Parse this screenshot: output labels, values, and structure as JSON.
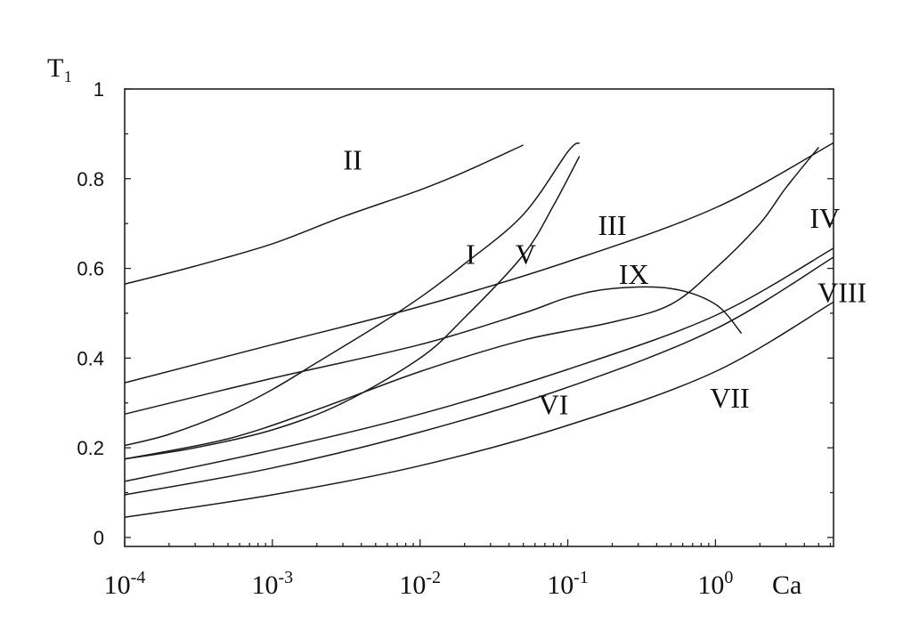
{
  "chart_data": {
    "type": "line",
    "xscale": "log",
    "xlim": [
      0.0001,
      6.3
    ],
    "ylim": [
      -0.02,
      1.0
    ],
    "xlabel": "Ca",
    "ylabel": "T₁",
    "grid": false,
    "legend": "none",
    "x_tick_labels": [
      {
        "value": 0.0001,
        "base": "10",
        "exp": "-4"
      },
      {
        "value": 0.001,
        "base": "10",
        "exp": "-3"
      },
      {
        "value": 0.01,
        "base": "10",
        "exp": "-2"
      },
      {
        "value": 0.1,
        "base": "10",
        "exp": "-1"
      },
      {
        "value": 1,
        "base": "10",
        "exp": "0"
      }
    ],
    "y_tick_labels": [
      {
        "value": 0,
        "label": "0"
      },
      {
        "value": 0.2,
        "label": "0.2"
      },
      {
        "value": 0.4,
        "label": "0.4"
      },
      {
        "value": 0.6,
        "label": "0.6"
      },
      {
        "value": 0.8,
        "label": "0.8"
      },
      {
        "value": 1,
        "label": "1"
      }
    ],
    "series": [
      {
        "name": "I",
        "label_at": [
          0.022,
          0.61
        ],
        "points": [
          [
            0.0001,
            0.205
          ],
          [
            0.0002,
            0.23
          ],
          [
            0.0005,
            0.28
          ],
          [
            0.001,
            0.33
          ],
          [
            0.002,
            0.39
          ],
          [
            0.005,
            0.47
          ],
          [
            0.01,
            0.535
          ],
          [
            0.02,
            0.61
          ],
          [
            0.05,
            0.72
          ],
          [
            0.1,
            0.86
          ],
          [
            0.12,
            0.88
          ]
        ]
      },
      {
        "name": "II",
        "label_at": [
          0.0035,
          0.82
        ],
        "points": [
          [
            0.0001,
            0.565
          ],
          [
            0.0003,
            0.605
          ],
          [
            0.001,
            0.655
          ],
          [
            0.003,
            0.715
          ],
          [
            0.01,
            0.775
          ],
          [
            0.02,
            0.815
          ],
          [
            0.05,
            0.875
          ]
        ]
      },
      {
        "name": "III",
        "label_at": [
          0.2,
          0.675
        ],
        "points": [
          [
            0.0001,
            0.345
          ],
          [
            0.001,
            0.43
          ],
          [
            0.01,
            0.515
          ],
          [
            0.1,
            0.615
          ],
          [
            1,
            0.735
          ],
          [
            6.3,
            0.88
          ]
        ]
      },
      {
        "name": "IV",
        "label_at": [
          5.5,
          0.69
        ],
        "points": [
          [
            0.0001,
            0.175
          ],
          [
            0.0005,
            0.22
          ],
          [
            0.002,
            0.285
          ],
          [
            0.01,
            0.37
          ],
          [
            0.05,
            0.44
          ],
          [
            0.2,
            0.48
          ],
          [
            0.5,
            0.52
          ],
          [
            1,
            0.6
          ],
          [
            2,
            0.7
          ],
          [
            3,
            0.78
          ],
          [
            5,
            0.87
          ]
        ]
      },
      {
        "name": "V",
        "label_at": [
          0.052,
          0.61
        ],
        "points": [
          [
            0.0001,
            0.175
          ],
          [
            0.0003,
            0.2
          ],
          [
            0.001,
            0.24
          ],
          [
            0.003,
            0.3
          ],
          [
            0.01,
            0.4
          ],
          [
            0.02,
            0.49
          ],
          [
            0.05,
            0.63
          ],
          [
            0.08,
            0.74
          ],
          [
            0.12,
            0.85
          ]
        ]
      },
      {
        "name": "VI",
        "label_at": [
          0.08,
          0.275
        ],
        "points": [
          [
            0.0001,
            0.095
          ],
          [
            0.001,
            0.155
          ],
          [
            0.01,
            0.235
          ],
          [
            0.1,
            0.335
          ],
          [
            1,
            0.465
          ],
          [
            6.3,
            0.625
          ]
        ]
      },
      {
        "name": "VII",
        "label_at": [
          1.25,
          0.29
        ],
        "points": [
          [
            0.0001,
            0.045
          ],
          [
            0.001,
            0.095
          ],
          [
            0.01,
            0.16
          ],
          [
            0.1,
            0.25
          ],
          [
            1,
            0.37
          ],
          [
            6.3,
            0.525
          ]
        ]
      },
      {
        "name": "VIII",
        "label_at": [
          7.2,
          0.525
        ],
        "points": [
          [
            0.0001,
            0.125
          ],
          [
            0.001,
            0.195
          ],
          [
            0.01,
            0.275
          ],
          [
            0.1,
            0.375
          ],
          [
            1,
            0.495
          ],
          [
            6.3,
            0.645
          ]
        ]
      },
      {
        "name": "IX",
        "label_at": [
          0.28,
          0.565
        ],
        "points": [
          [
            0.0001,
            0.275
          ],
          [
            0.001,
            0.355
          ],
          [
            0.01,
            0.43
          ],
          [
            0.05,
            0.5
          ],
          [
            0.1,
            0.535
          ],
          [
            0.2,
            0.555
          ],
          [
            0.5,
            0.555
          ],
          [
            1,
            0.52
          ],
          [
            1.5,
            0.455
          ]
        ]
      }
    ]
  }
}
